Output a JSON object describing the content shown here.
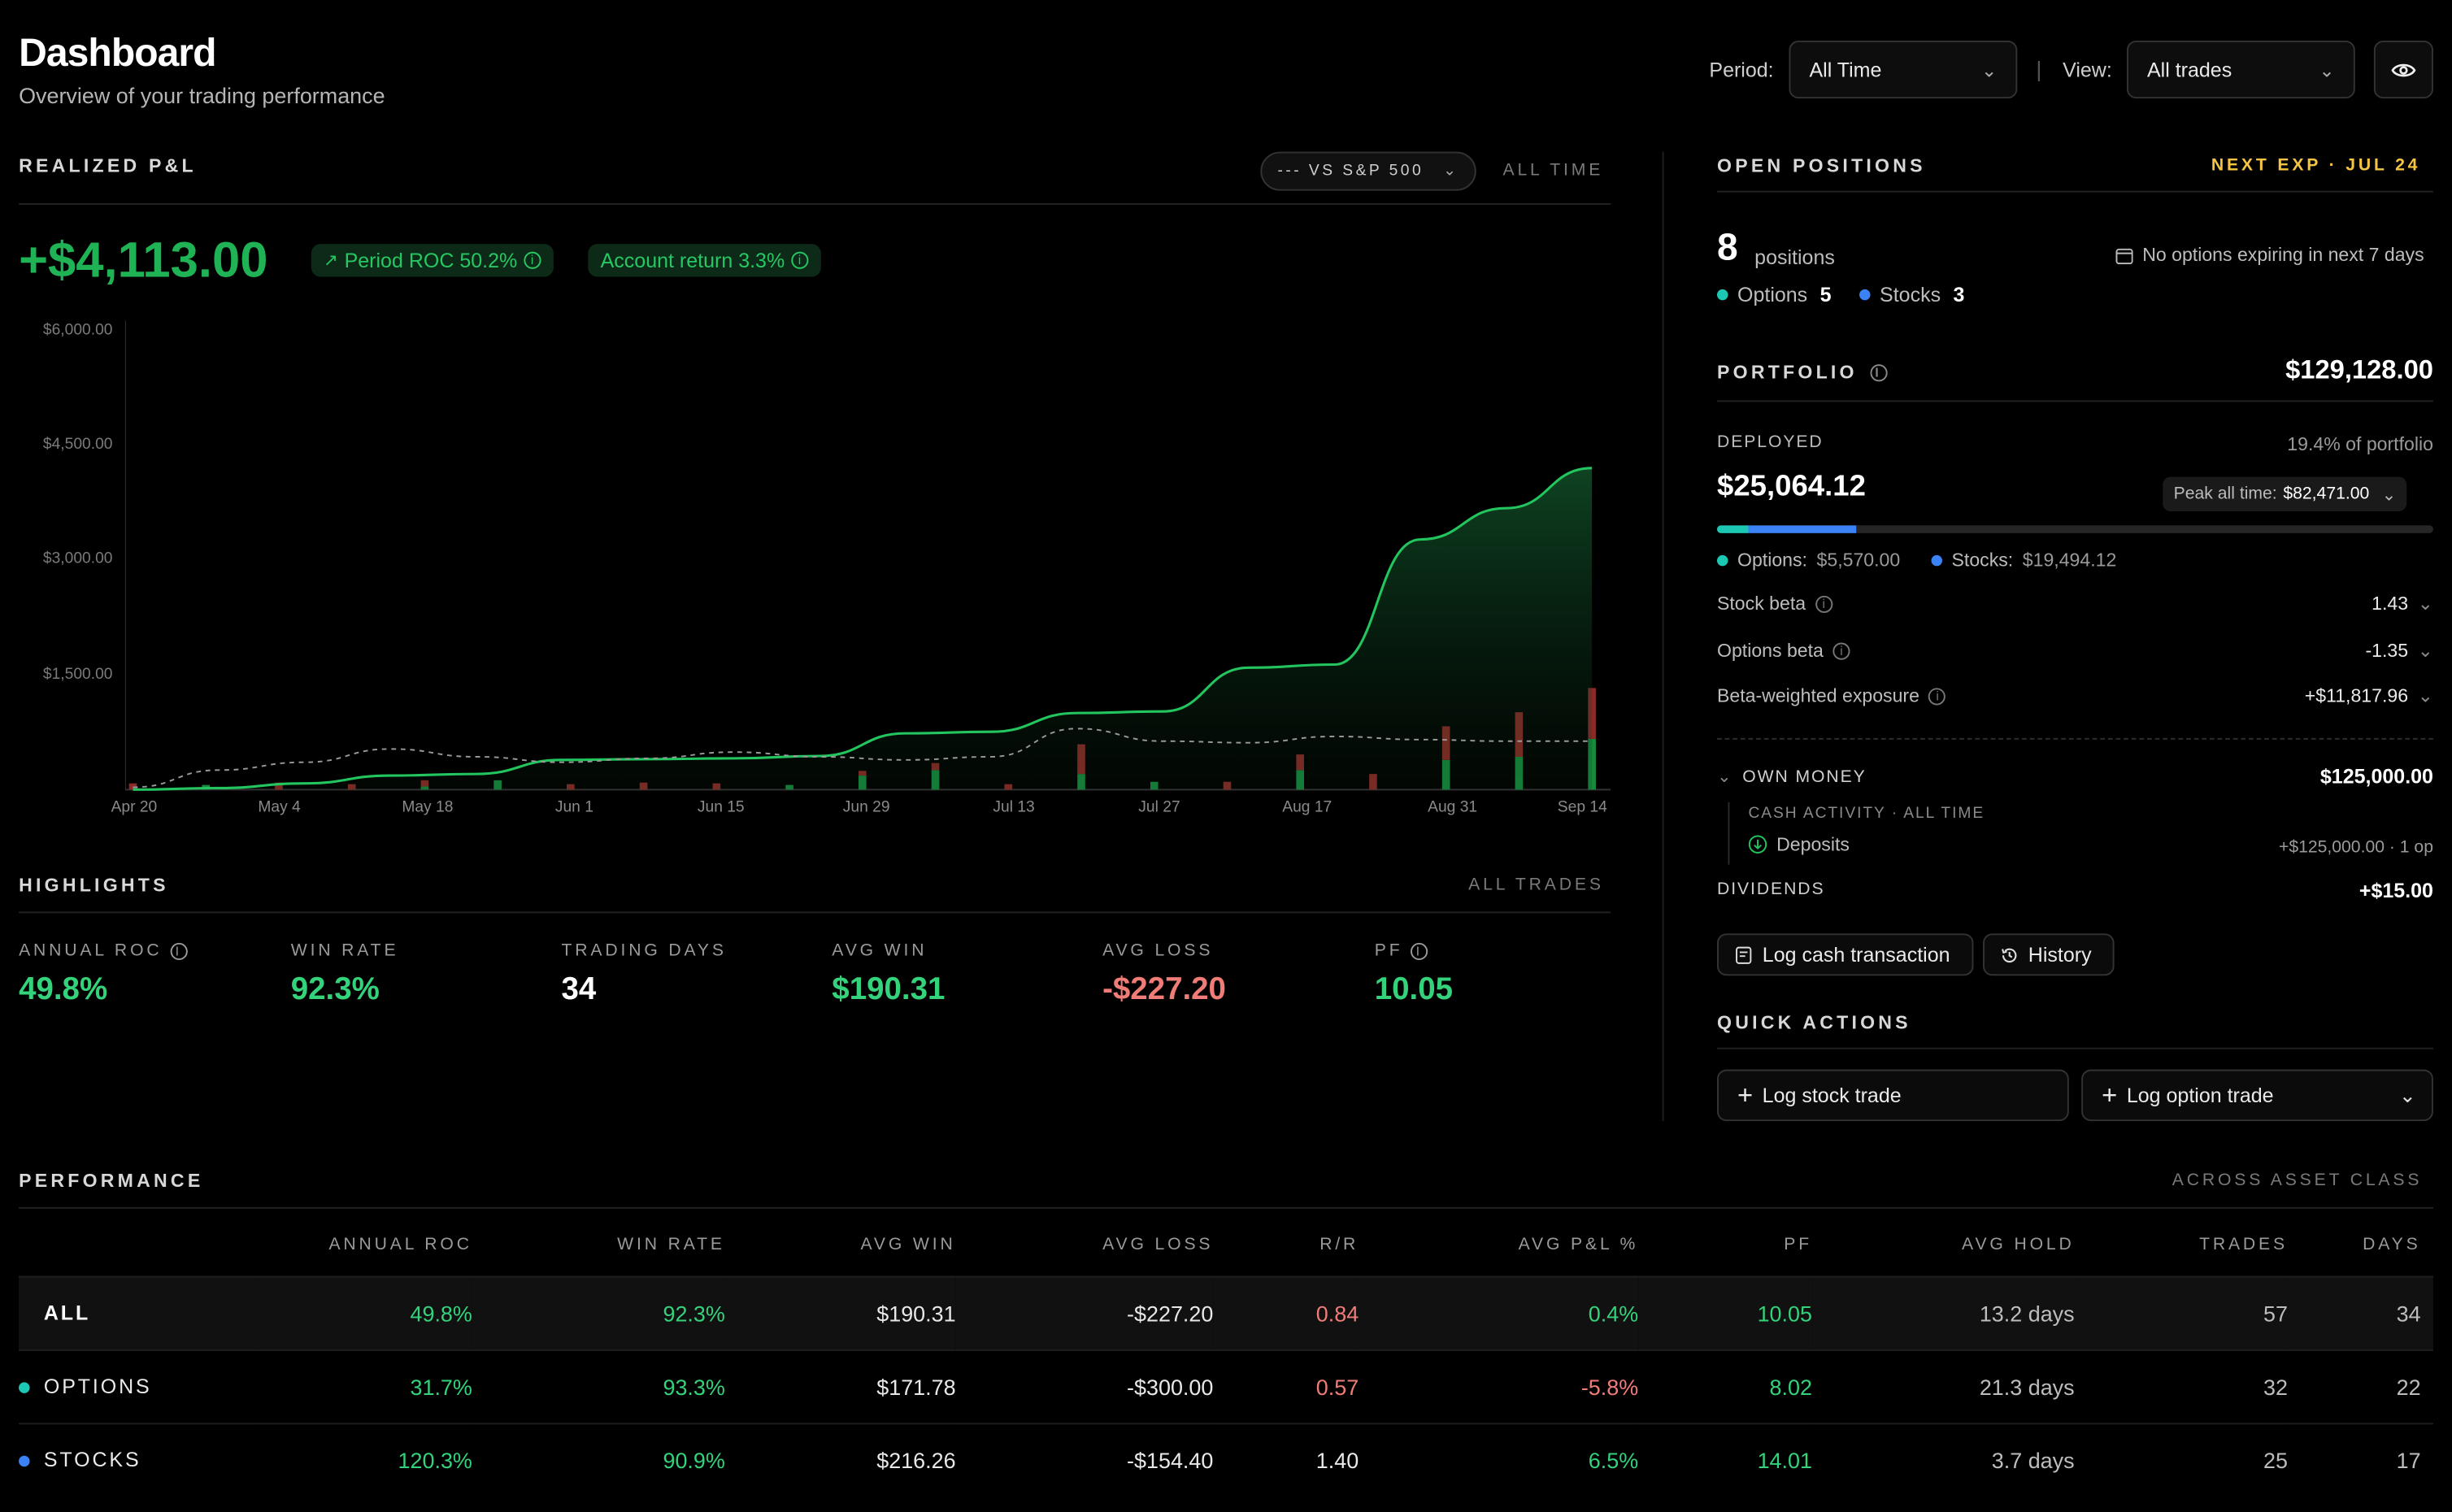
{
  "header": {
    "title": "Dashboard",
    "subtitle": "Overview of your trading performance",
    "period_label": "Period:",
    "period_value": "All Time",
    "view_label": "View:",
    "view_value": "All trades",
    "separator": "|"
  },
  "pnl": {
    "section_title": "REALIZED P&L",
    "compare_label": "--- VS S&P 500",
    "range_label": "ALL TIME",
    "total": "+$4,113.00",
    "period_roc": "Period ROC 50.2%",
    "account_return": "Account return 3.3%"
  },
  "chart_data": {
    "type": "area",
    "y_ticks": [
      "$6,000.00",
      "$4,500.00",
      "$3,000.00",
      "$1,500.00"
    ],
    "ylim": [
      0,
      6000
    ],
    "x_ticks": [
      "Apr 20",
      "May 4",
      "May 18",
      "Jun 1",
      "Jun 15",
      "Jun 29",
      "Jul 13",
      "Jul 27",
      "Aug 17",
      "Aug 31",
      "Sep 14"
    ],
    "cumulative_pnl": [
      0,
      20,
      80,
      180,
      200,
      380,
      390,
      400,
      430,
      720,
      740,
      980,
      1000,
      1560,
      1600,
      3200,
      3600,
      4113
    ],
    "sp500_comparison": [
      30,
      250,
      350,
      520,
      420,
      350,
      400,
      480,
      420,
      380,
      420,
      780,
      620,
      600,
      680,
      640,
      620,
      620
    ],
    "daily_bars": [
      {
        "day": 0,
        "win": 0,
        "loss": 80
      },
      {
        "day": 2,
        "win": 60,
        "loss": 0
      },
      {
        "day": 4,
        "win": 0,
        "loss": 90
      },
      {
        "day": 6,
        "win": 0,
        "loss": 70
      },
      {
        "day": 8,
        "win": 40,
        "loss": 80
      },
      {
        "day": 10,
        "win": 120,
        "loss": 0
      },
      {
        "day": 12,
        "win": 0,
        "loss": 70
      },
      {
        "day": 14,
        "win": 0,
        "loss": 90
      },
      {
        "day": 16,
        "win": 0,
        "loss": 80
      },
      {
        "day": 18,
        "win": 60,
        "loss": 0
      },
      {
        "day": 20,
        "win": 180,
        "loss": 60
      },
      {
        "day": 22,
        "win": 250,
        "loss": 90
      },
      {
        "day": 24,
        "win": 0,
        "loss": 70
      },
      {
        "day": 26,
        "win": 200,
        "loss": 380
      },
      {
        "day": 28,
        "win": 100,
        "loss": 0
      },
      {
        "day": 30,
        "win": 0,
        "loss": 100
      },
      {
        "day": 32,
        "win": 250,
        "loss": 200
      },
      {
        "day": 34,
        "win": 0,
        "loss": 200
      },
      {
        "day": 36,
        "win": 380,
        "loss": 430
      },
      {
        "day": 38,
        "win": 420,
        "loss": 570
      },
      {
        "day": 40,
        "win": 650,
        "loss": 650
      }
    ]
  },
  "highlights": {
    "section_title": "HIGHLIGHTS",
    "scope": "ALL TRADES",
    "items": [
      {
        "label": "ANNUAL ROC",
        "value": "49.8%",
        "tone": "green",
        "info": true
      },
      {
        "label": "WIN RATE",
        "value": "92.3%",
        "tone": "green",
        "info": false
      },
      {
        "label": "TRADING DAYS",
        "value": "34",
        "tone": "white",
        "info": false
      },
      {
        "label": "AVG WIN",
        "value": "$190.31",
        "tone": "green",
        "info": false
      },
      {
        "label": "AVG LOSS",
        "value": "-$227.20",
        "tone": "red",
        "info": false
      },
      {
        "label": "PF",
        "value": "10.05",
        "tone": "green",
        "info": true
      }
    ]
  },
  "open_positions": {
    "title": "OPEN POSITIONS",
    "next_exp": "NEXT EXP · JUL 24",
    "count": "8",
    "count_label": "positions",
    "no_expiry_note": "No options expiring in next 7 days",
    "options_label": "Options",
    "options_count": "5",
    "stocks_label": "Stocks",
    "stocks_count": "3"
  },
  "portfolio": {
    "title": "PORTFOLIO",
    "value": "$129,128.00",
    "deployed_label": "DEPLOYED",
    "deployed_pct": "19.4% of portfolio",
    "deployed_value": "$25,064.12",
    "peak_label": "Peak all time:",
    "peak_value": "$82,471.00",
    "options_alloc_label": "Options:",
    "options_alloc": "$5,570.00",
    "stocks_alloc_label": "Stocks:",
    "stocks_alloc": "$19,494.12",
    "deployed_fraction": 0.194,
    "options_fraction": 0.222,
    "stock_beta_label": "Stock beta",
    "stock_beta": "1.43",
    "options_beta_label": "Options beta",
    "options_beta": "-1.35",
    "bwe_label": "Beta-weighted exposure",
    "bwe": "+$11,817.96",
    "own_money_label": "OWN MONEY",
    "own_money": "$125,000.00",
    "cash_activity_label": "CASH ACTIVITY · ALL TIME",
    "deposits_label": "Deposits",
    "deposits_value": "+$125,000.00 · 1 op",
    "dividends_label": "DIVIDENDS",
    "dividends_value": "+$15.00",
    "log_cash_label": "Log cash transaction",
    "history_label": "History"
  },
  "quick_actions": {
    "title": "QUICK ACTIONS",
    "log_stock": "Log stock trade",
    "log_option": "Log option trade"
  },
  "performance": {
    "title": "PERFORMANCE",
    "scope": "ACROSS ASSET CLASS",
    "columns": [
      "ANNUAL ROC",
      "WIN RATE",
      "AVG WIN",
      "AVG LOSS",
      "R/R",
      "AVG P&L %",
      "PF",
      "AVG HOLD",
      "TRADES",
      "DAYS"
    ],
    "rows": [
      {
        "label": "ALL",
        "dot": "",
        "cells": [
          "49.8%",
          "92.3%",
          "$190.31",
          "-$227.20",
          "0.84",
          "0.4%",
          "10.05",
          "13.2 days",
          "57",
          "34"
        ]
      },
      {
        "label": "OPTIONS",
        "dot": "#1cc7b3",
        "cells": [
          "31.7%",
          "93.3%",
          "$171.78",
          "-$300.00",
          "0.57",
          "-5.8%",
          "8.02",
          "21.3 days",
          "32",
          "22"
        ]
      },
      {
        "label": "STOCKS",
        "dot": "#3b82f6",
        "cells": [
          "120.3%",
          "90.9%",
          "$216.26",
          "-$154.40",
          "1.40",
          "6.5%",
          "14.01",
          "3.7 days",
          "25",
          "17"
        ]
      }
    ]
  },
  "colors": {
    "accent_green": "#22c55e",
    "loss_red": "#f07c78",
    "options_teal": "#1cc7b3",
    "stocks_blue": "#3b82f6",
    "exp_yellow": "#f5c542"
  }
}
